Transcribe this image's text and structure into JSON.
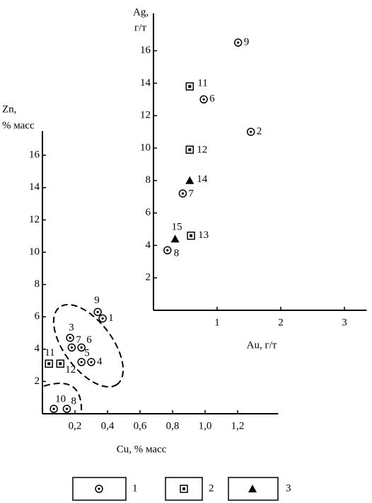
{
  "chart_data": [
    {
      "type": "scatter",
      "ylabel": [
        "Zn,",
        "% масс"
      ],
      "xlabel": "Cu, % масс",
      "xlim": [
        0,
        1.45
      ],
      "ylim": [
        0,
        17.5
      ],
      "xticks": [
        {
          "value": 0.2,
          "label": "0,2"
        },
        {
          "value": 0.4,
          "label": "0,4"
        },
        {
          "value": 0.6,
          "label": "0,6"
        },
        {
          "value": 0.8,
          "label": "0,8"
        },
        {
          "value": 1.0,
          "label": "1,0"
        },
        {
          "value": 1.2,
          "label": "1,2"
        }
      ],
      "yticks": [
        2,
        4,
        6,
        8,
        10,
        12,
        14,
        16
      ],
      "series": [
        {
          "name": "1",
          "marker": "circle",
          "color": "#000000",
          "x": [
            0.34,
            0.37,
            0.17,
            0.18,
            0.24,
            0.24,
            0.3,
            0.07,
            0.15
          ],
          "y": [
            6.3,
            5.9,
            4.7,
            4.1,
            4.1,
            3.2,
            3.2,
            0.3,
            0.3
          ],
          "labels": [
            "9",
            "1",
            "3",
            "7",
            "6",
            "5",
            "4",
            "10",
            "8"
          ]
        },
        {
          "name": "2",
          "marker": "square",
          "color": "#000000",
          "x": [
            0.04,
            0.11
          ],
          "y": [
            3.1,
            3.1
          ],
          "labels": [
            "11",
            "12"
          ]
        }
      ]
    },
    {
      "type": "scatter",
      "ylabel": [
        "Ag,",
        "г/т"
      ],
      "xlabel": "Au, г/т",
      "xlim": [
        0,
        3.35
      ],
      "ylim": [
        0,
        18.3
      ],
      "xticks": [
        1,
        2,
        3
      ],
      "yticks": [
        2,
        4,
        6,
        8,
        10,
        12,
        14,
        16
      ],
      "series": [
        {
          "name": "1",
          "marker": "circle",
          "color": "#000000",
          "x": [
            1.33,
            0.79,
            1.53,
            0.46,
            0.22
          ],
          "y": [
            16.5,
            13.0,
            11.0,
            7.2,
            3.7
          ],
          "labels": [
            "9",
            "6",
            "2",
            "7",
            "8"
          ]
        },
        {
          "name": "2",
          "marker": "square",
          "color": "#000000",
          "x": [
            0.57,
            0.57,
            0.59
          ],
          "y": [
            13.8,
            9.9,
            4.6
          ],
          "labels": [
            "11",
            "12",
            "13"
          ]
        },
        {
          "name": "3",
          "marker": "triangle",
          "color": "#000000",
          "x": [
            0.57,
            0.34
          ],
          "y": [
            8.0,
            4.4
          ],
          "labels": [
            "14",
            "15"
          ]
        }
      ]
    }
  ]
}
